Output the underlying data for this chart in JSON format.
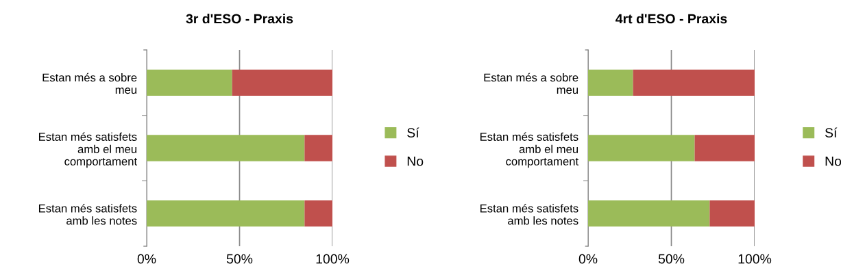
{
  "chart_data": [
    {
      "type": "bar",
      "orientation": "horizontal",
      "stacked": true,
      "title": "3r d'ESO - Praxis",
      "categories": [
        "Estan més a sobre meu",
        "Estan més satisfets amb el meu comportament",
        "Estan més satisfets amb les notes"
      ],
      "series": [
        {
          "name": "Sí",
          "color": "#9bbb59",
          "values": [
            46,
            85,
            85
          ]
        },
        {
          "name": "No",
          "color": "#c0504d",
          "values": [
            54,
            15,
            15
          ]
        }
      ],
      "xlim": [
        0,
        100
      ],
      "xticks": [
        {
          "value": 0,
          "label": "0%"
        },
        {
          "value": 50,
          "label": "50%"
        },
        {
          "value": 100,
          "label": "100%"
        }
      ],
      "grid": "x",
      "legend": "right"
    },
    {
      "type": "bar",
      "orientation": "horizontal",
      "stacked": true,
      "title": "4rt d'ESO - Praxis",
      "categories": [
        "Estan més a sobre meu",
        "Estan més satisfets amb el meu comportament",
        "Estan més satisfets amb les notes"
      ],
      "series": [
        {
          "name": "Sí",
          "color": "#9bbb59",
          "values": [
            27,
            64,
            73
          ]
        },
        {
          "name": "No",
          "color": "#c0504d",
          "values": [
            73,
            36,
            27
          ]
        }
      ],
      "xlim": [
        0,
        100
      ],
      "xticks": [
        {
          "value": 0,
          "label": "0%"
        },
        {
          "value": 50,
          "label": "50%"
        },
        {
          "value": 100,
          "label": "100%"
        }
      ],
      "grid": "x",
      "legend": "right"
    }
  ]
}
